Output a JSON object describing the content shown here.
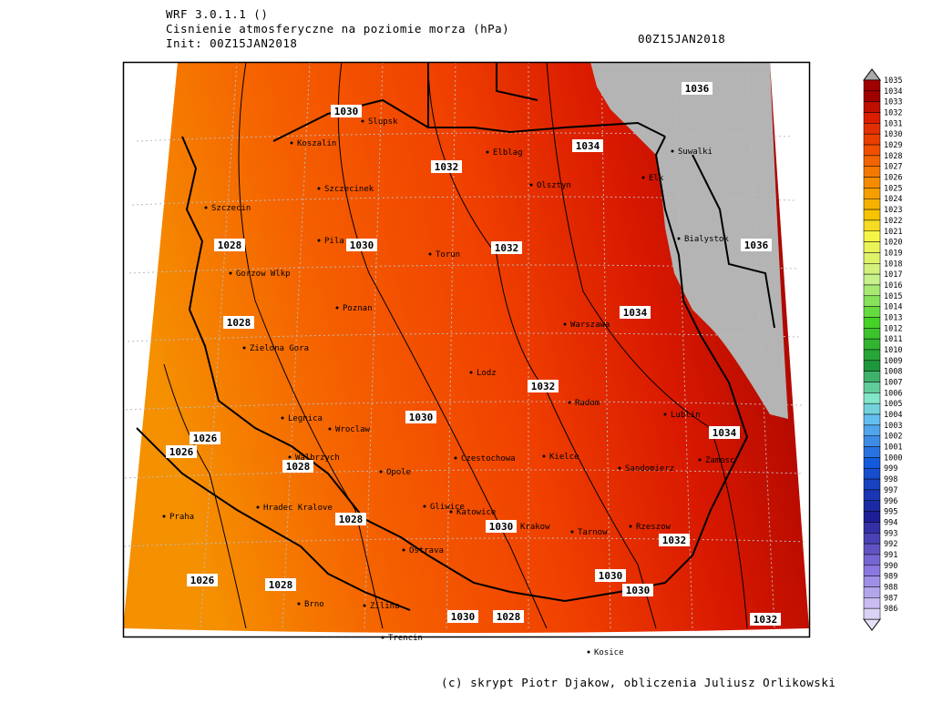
{
  "header": {
    "model": "WRF 3.0.1.1 ()",
    "title": "Cisnienie atmosferyczne na poziomie morza (hPa)",
    "init": "Init: 00Z15JAN2018",
    "valid": "00Z15JAN2018"
  },
  "cities": [
    "Slupsk",
    "Koszalin",
    "Elblag",
    "Suwalki",
    "Elk",
    "Olsztyn",
    "Szczecinek",
    "Szczecin",
    "Bialystok",
    "Pila",
    "Torun",
    "Gorzow Wlkp",
    "Poznan",
    "Warszawa",
    "Zielona Gora",
    "Lodz",
    "Radom",
    "Lublin",
    "Legnica",
    "Wroclaw",
    "Czestochowa",
    "Kielce",
    "Walbrzych",
    "Zamosc",
    "Opole",
    "Sandomierz",
    "Praha",
    "Hradec Kralove",
    "Gliwice",
    "Katowice",
    "Krakow",
    "Tarnow",
    "Rzeszow",
    "Ostrava",
    "Brno",
    "Zilina",
    "Trencin",
    "Kosice"
  ],
  "contour_labels": [
    1030,
    1036,
    1034,
    1032,
    1028,
    1030,
    1032,
    1036,
    1034,
    1028,
    1032,
    1030,
    1034,
    1026,
    1026,
    1028,
    1028,
    1030,
    1032,
    1026,
    1028,
    1030,
    1030,
    1030,
    1028,
    1032
  ],
  "colorbar": {
    "levels": [
      1035,
      1034,
      1033,
      1032,
      1031,
      1030,
      1029,
      1028,
      1027,
      1026,
      1025,
      1024,
      1023,
      1022,
      1021,
      1020,
      1019,
      1018,
      1017,
      1016,
      1015,
      1014,
      1013,
      1012,
      1011,
      1010,
      1009,
      1008,
      1007,
      1006,
      1005,
      1004,
      1003,
      1002,
      1001,
      1000,
      999,
      998,
      997,
      996,
      995,
      994,
      993,
      992,
      991,
      990,
      989,
      988,
      987,
      986
    ]
  },
  "credit": "(c) skrypt Piotr Djakow, obliczenia Juliusz Orlikowski"
}
